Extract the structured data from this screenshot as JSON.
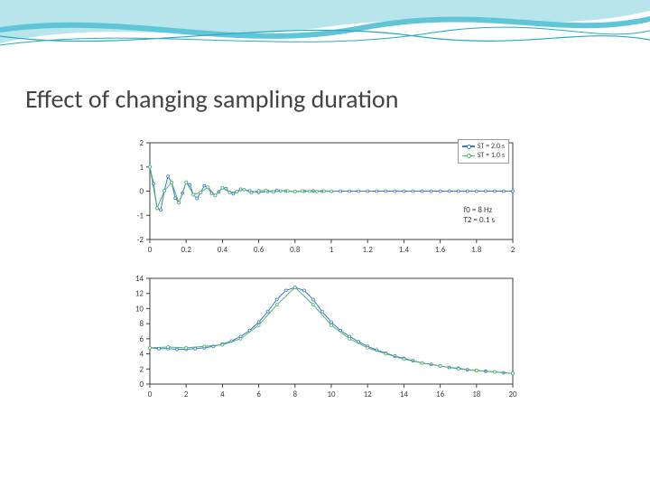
{
  "slide": {
    "title": "Effect of changing sampling duration",
    "title_fontsize": 28,
    "title_color": "#444444",
    "wave_colors": {
      "light": "#b8e4ec",
      "mid": "#5fc5d8",
      "dark": "#2aa9c2"
    }
  },
  "top_chart": {
    "type": "line",
    "xlim": [
      0,
      2
    ],
    "ylim": [
      -2,
      2
    ],
    "xticks": [
      0,
      0.2,
      0.4,
      0.6,
      0.8,
      1.0,
      1.2,
      1.4,
      1.6,
      1.8,
      2.0
    ],
    "yticks": [
      -2,
      -1,
      0,
      1,
      2
    ],
    "grid_color": "#bfbfbf",
    "axis_color": "#404040",
    "background_color": "#ffffff",
    "tick_fontsize": 9,
    "legend": {
      "items": [
        {
          "label": "ST = 2.0 s",
          "color": "#3a78c9"
        },
        {
          "label": "ST = 1.0 s",
          "color": "#4fb36e"
        }
      ]
    },
    "annotation": {
      "lines": [
        "f0 = 8 Hz",
        "T2 = 0.1 s"
      ]
    },
    "series": [
      {
        "name": "st_2.0s",
        "color": "#3a78c9",
        "marker": "circle",
        "marker_size": 3,
        "line_width": 1,
        "x": [
          0,
          0.02,
          0.04,
          0.06,
          0.08,
          0.1,
          0.12,
          0.14,
          0.16,
          0.18,
          0.2,
          0.22,
          0.24,
          0.26,
          0.28,
          0.3,
          0.32,
          0.34,
          0.36,
          0.38,
          0.4,
          0.42,
          0.44,
          0.46,
          0.48,
          0.5,
          0.55,
          0.6,
          0.65,
          0.7,
          0.75,
          0.8,
          0.85,
          0.9,
          0.95,
          1.0,
          1.05,
          1.1,
          1.15,
          1.2,
          1.25,
          1.3,
          1.35,
          1.4,
          1.45,
          1.5,
          1.55,
          1.6,
          1.65,
          1.7,
          1.75,
          1.8,
          1.85,
          1.9,
          1.95,
          2.0
        ],
        "y": [
          1.0,
          0.31,
          -0.71,
          -0.78,
          0.02,
          0.61,
          0.36,
          -0.29,
          -0.48,
          -0.08,
          0.37,
          0.26,
          -0.15,
          -0.3,
          -0.05,
          0.22,
          0.16,
          -0.09,
          -0.18,
          -0.03,
          0.14,
          0.1,
          -0.05,
          -0.11,
          -0.02,
          0.08,
          0.01,
          -0.05,
          -0.01,
          0.03,
          0.0,
          -0.02,
          0.0,
          0.01,
          0.0,
          -0.01,
          0.0,
          0.0,
          0.0,
          0.0,
          0.0,
          0.0,
          0.0,
          0.0,
          0.0,
          0.0,
          0.0,
          0.0,
          0.0,
          0.0,
          0.0,
          0.0,
          0.0,
          0.0,
          0.0,
          0.0
        ]
      },
      {
        "name": "st_1.0s",
        "color": "#4fb36e",
        "marker": "circle",
        "marker_size": 3,
        "line_width": 1,
        "x": [
          0,
          0.04,
          0.08,
          0.12,
          0.16,
          0.2,
          0.24,
          0.28,
          0.32,
          0.36,
          0.4,
          0.44,
          0.48,
          0.52,
          0.56,
          0.6,
          0.64,
          0.68,
          0.72,
          0.76,
          0.8,
          0.84,
          0.88,
          0.92,
          0.96,
          1.0
        ],
        "y": [
          1.0,
          -0.71,
          0.02,
          0.36,
          -0.48,
          0.37,
          -0.15,
          -0.05,
          0.16,
          -0.18,
          0.14,
          -0.05,
          -0.02,
          0.06,
          -0.07,
          0.02,
          0.03,
          -0.04,
          0.01,
          0.01,
          -0.02,
          0.01,
          0.0,
          -0.01,
          0.0,
          0.0
        ]
      }
    ]
  },
  "bottom_chart": {
    "type": "line",
    "xlim": [
      0,
      20
    ],
    "ylim": [
      0,
      14
    ],
    "xticks": [
      0,
      2,
      4,
      6,
      8,
      10,
      12,
      14,
      16,
      18,
      20
    ],
    "yticks": [
      0,
      2,
      4,
      6,
      8,
      10,
      12,
      14
    ],
    "grid_color": "#bfbfbf",
    "axis_color": "#404040",
    "background_color": "#ffffff",
    "tick_fontsize": 9,
    "series": [
      {
        "name": "spectrum_a",
        "color": "#3a78c9",
        "marker": "circle",
        "marker_size": 3,
        "line_width": 1,
        "x": [
          0,
          0.5,
          1,
          1.5,
          2,
          2.5,
          3,
          3.5,
          4,
          4.5,
          5,
          5.5,
          6,
          6.5,
          7,
          7.5,
          8,
          8.5,
          9,
          9.5,
          10,
          10.5,
          11,
          11.5,
          12,
          12.5,
          13,
          13.5,
          14,
          14.5,
          15,
          15.5,
          16,
          16.5,
          17,
          17.5,
          18,
          18.5,
          19,
          19.5,
          20
        ],
        "y": [
          4.8,
          4.7,
          4.7,
          4.6,
          4.6,
          4.7,
          4.8,
          5.0,
          5.3,
          5.7,
          6.3,
          7.1,
          8.2,
          9.6,
          11.2,
          12.4,
          12.8,
          12.4,
          11.2,
          9.6,
          8.2,
          7.1,
          6.3,
          5.6,
          5.0,
          4.5,
          4.1,
          3.7,
          3.4,
          3.1,
          2.8,
          2.6,
          2.4,
          2.2,
          2.1,
          1.9,
          1.8,
          1.7,
          1.6,
          1.5,
          1.4
        ]
      },
      {
        "name": "spectrum_b",
        "color": "#4fb36e",
        "marker": "circle",
        "marker_size": 3,
        "line_width": 1,
        "x": [
          0,
          1,
          2,
          3,
          4,
          5,
          6,
          7,
          8,
          9,
          10,
          11,
          12,
          13,
          14,
          15,
          16,
          17,
          18,
          19,
          20
        ],
        "y": [
          4.8,
          4.9,
          4.8,
          5.0,
          5.2,
          6.0,
          7.8,
          10.5,
          12.8,
          10.5,
          7.8,
          6.0,
          4.8,
          4.0,
          3.3,
          2.8,
          2.4,
          2.0,
          1.8,
          1.6,
          1.4
        ]
      }
    ]
  }
}
